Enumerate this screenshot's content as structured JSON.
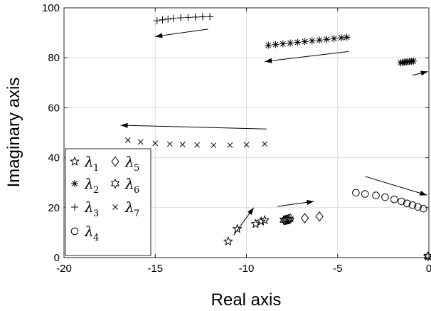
{
  "chart_data": {
    "type": "scatter",
    "title": "",
    "xlabel": "Real axis",
    "ylabel": "Imaginary axis",
    "xlim": [
      -20,
      0
    ],
    "ylim": [
      0,
      100
    ],
    "xticks": [
      -20,
      -15,
      -10,
      -5,
      0
    ],
    "yticks": [
      0,
      20,
      40,
      60,
      80,
      100
    ],
    "xtick_labels": [
      "-20",
      "-15",
      "-10",
      "-5",
      "0"
    ],
    "ytick_labels": [
      "0",
      "20",
      "40",
      "60",
      "80",
      "100"
    ],
    "grid": true,
    "legend_position": "lower-left",
    "series": [
      {
        "name": "λ1",
        "legend_symbol": "λ",
        "legend_sub": "1",
        "marker": "pentagram",
        "x": [
          -11.0,
          -10.5,
          -9.5,
          -9.2,
          -9.0,
          -0.05
        ],
        "y": [
          6.5,
          11.5,
          13.5,
          14.5,
          15.0,
          0.5
        ]
      },
      {
        "name": "λ2",
        "legend_symbol": "λ",
        "legend_sub": "2",
        "marker": "asterisk",
        "x": [
          -8.8,
          -8.4,
          -8.0,
          -7.6,
          -7.2,
          -6.8,
          -6.4,
          -6.0,
          -5.6,
          -5.2,
          -4.8,
          -4.5,
          -1.55,
          -1.45,
          -1.35,
          -1.25,
          -1.15,
          -1.05,
          -0.95,
          -0.85
        ],
        "y": [
          85.0,
          85.3,
          85.6,
          85.9,
          86.2,
          86.5,
          86.8,
          87.1,
          87.4,
          87.7,
          88.0,
          88.2,
          78.0,
          78.1,
          78.2,
          78.3,
          78.4,
          78.5,
          78.6,
          78.7
        ]
      },
      {
        "name": "λ3",
        "legend_symbol": "λ",
        "legend_sub": "3",
        "marker": "plus",
        "x": [
          -14.9,
          -14.6,
          -14.3,
          -14.0,
          -13.6,
          -13.2,
          -12.8,
          -12.4,
          -12.0
        ],
        "y": [
          94.8,
          95.2,
          95.5,
          95.8,
          96.0,
          96.2,
          96.3,
          96.4,
          96.5
        ]
      },
      {
        "name": "λ4",
        "legend_symbol": "λ",
        "legend_sub": "4",
        "marker": "circle",
        "x": [
          -4.0,
          -3.5,
          -2.9,
          -2.4,
          -1.9,
          -1.5,
          -1.2,
          -0.9,
          -0.6,
          -0.3
        ],
        "y": [
          26.0,
          25.5,
          24.9,
          24.2,
          23.3,
          22.5,
          21.7,
          21.0,
          20.3,
          19.6
        ]
      },
      {
        "name": "λ5",
        "legend_symbol": "λ",
        "legend_sub": "5",
        "marker": "diamond",
        "x": [
          -7.9,
          -7.8,
          -7.7,
          -7.6,
          -6.8,
          -6.0
        ],
        "y": [
          15.0,
          15.2,
          15.4,
          15.6,
          15.8,
          16.5
        ]
      },
      {
        "name": "λ6",
        "legend_symbol": "λ",
        "legend_sub": "6",
        "marker": "hexagram",
        "x": [
          -7.95,
          -7.85,
          -7.75,
          -7.65,
          -0.05
        ],
        "y": [
          15.0,
          15.1,
          15.2,
          15.3,
          0.5
        ]
      },
      {
        "name": "λ7",
        "legend_symbol": "λ",
        "legend_sub": "7",
        "marker": "x",
        "x": [
          -16.5,
          -15.8,
          -15.0,
          -14.2,
          -13.5,
          -12.7,
          -11.8,
          -10.9,
          -10.0,
          -9.0
        ],
        "y": [
          47.0,
          46.3,
          45.8,
          45.5,
          45.3,
          45.1,
          45.0,
          45.0,
          45.2,
          45.5
        ]
      }
    ],
    "arrows": [
      {
        "x1": -12.1,
        "y1": 91.5,
        "x2": -15.0,
        "y2": 88.5
      },
      {
        "x1": -4.4,
        "y1": 82.5,
        "x2": -9.0,
        "y2": 78.5
      },
      {
        "x1": -0.9,
        "y1": 73.0,
        "x2": -0.05,
        "y2": 74.5
      },
      {
        "x1": -8.9,
        "y1": 51.5,
        "x2": -16.9,
        "y2": 53.0
      },
      {
        "x1": -10.7,
        "y1": 9.0,
        "x2": -9.6,
        "y2": 20.0
      },
      {
        "x1": -8.3,
        "y1": 20.5,
        "x2": -6.3,
        "y2": 22.5
      },
      {
        "x1": -3.5,
        "y1": 32.5,
        "x2": -0.1,
        "y2": 25.0
      }
    ]
  }
}
